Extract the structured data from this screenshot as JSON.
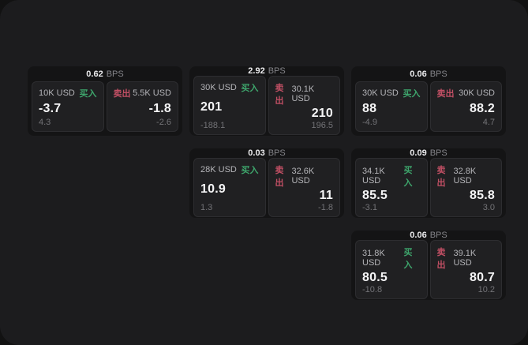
{
  "labels": {
    "bps_unit": "BPS",
    "buy": "买入",
    "sell": "卖出"
  },
  "colors": {
    "page_background": "#121212",
    "container_background": "#1c1c1e",
    "card_background": "#141415",
    "panel_background": "#202022",
    "buy_green": "#3ea56c",
    "sell_red": "#c14f64"
  },
  "cards": [
    {
      "bps": "0.62",
      "buy": {
        "notional": "10K USD",
        "value": "-3.7",
        "delta": "4.3"
      },
      "sell": {
        "notional": "5.5K USD",
        "value": "-1.8",
        "delta": "-2.6"
      }
    },
    {
      "bps": "2.92",
      "buy": {
        "notional": "30K USD",
        "value": "201",
        "delta": "-188.1"
      },
      "sell": {
        "notional": "30.1K USD",
        "value": "210",
        "delta": "196.5"
      }
    },
    {
      "bps": "0.06",
      "buy": {
        "notional": "30K USD",
        "value": "88",
        "delta": "-4.9"
      },
      "sell": {
        "notional": "30K USD",
        "value": "88.2",
        "delta": "4.7"
      }
    },
    {
      "bps": "0.03",
      "buy": {
        "notional": "28K USD",
        "value": "10.9",
        "delta": "1.3"
      },
      "sell": {
        "notional": "32.6K USD",
        "value": "11",
        "delta": "-1.8"
      }
    },
    {
      "bps": "0.09",
      "buy": {
        "notional": "34.1K USD",
        "value": "85.5",
        "delta": "-3.1"
      },
      "sell": {
        "notional": "32.8K USD",
        "value": "85.8",
        "delta": "3.0"
      }
    },
    {
      "bps": "0.06",
      "buy": {
        "notional": "31.8K USD",
        "value": "80.5",
        "delta": "-10.8"
      },
      "sell": {
        "notional": "39.1K USD",
        "value": "80.7",
        "delta": "10.2"
      }
    }
  ]
}
